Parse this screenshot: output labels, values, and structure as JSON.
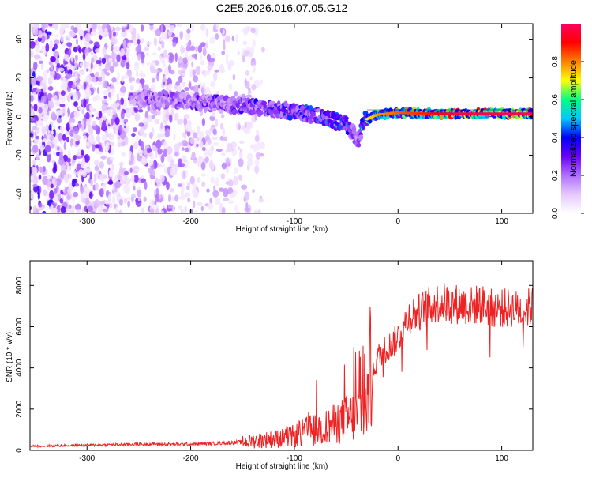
{
  "title": "C2E5.2026.016.07.05.G12",
  "chart_data": [
    {
      "type": "heatmap",
      "xlabel": "Height of straight line (km)",
      "ylabel": "Frequency (Hz)",
      "xlim": [
        -355,
        130
      ],
      "ylim": [
        -50,
        48
      ],
      "xticks": [
        -300,
        -200,
        -100,
        0,
        100
      ],
      "xtick_labels": [
        "-300",
        "-200",
        "-100",
        "0",
        "100"
      ],
      "yticks": [
        -40,
        -20,
        0,
        20,
        40
      ],
      "ytick_labels": [
        "-40",
        "-20",
        "0",
        "20",
        "40"
      ],
      "colorbar": {
        "label": "Normalized spectral amplitude",
        "range": [
          0,
          1
        ],
        "ticks": [
          0.0,
          0.2,
          0.4,
          0.6,
          0.8
        ],
        "tick_labels": [
          "0.0",
          "0.2",
          "0.4",
          "0.6",
          "0.8"
        ],
        "colors": [
          "#ffffff",
          "#e6c8ff",
          "#b070ff",
          "#6a00ff",
          "#0000ff",
          "#00c8ff",
          "#00ff80",
          "#ffff00",
          "#ff8000",
          "#ff0000",
          "#ff0060"
        ]
      },
      "ridge": {
        "x": [
          -255,
          -230,
          -200,
          -160,
          -120,
          -80,
          -50,
          -38,
          -33,
          -20,
          0,
          30,
          60,
          90,
          130
        ],
        "freq": [
          9,
          9,
          8,
          6,
          4,
          1,
          -4,
          -12,
          -2,
          1,
          2,
          1.5,
          1.5,
          1.5,
          1.5
        ],
        "amplitude": [
          0.25,
          0.3,
          0.3,
          0.35,
          0.4,
          0.45,
          0.45,
          0.35,
          0.6,
          0.7,
          0.75,
          0.8,
          0.9,
          0.9,
          0.9
        ]
      },
      "grid": false
    },
    {
      "type": "line",
      "xlabel": "Height of straight line (km)",
      "ylabel": "SNR (10 * v/v)",
      "xlim": [
        -355,
        130
      ],
      "ylim": [
        0,
        9200
      ],
      "xticks": [
        -300,
        -200,
        -100,
        0,
        100
      ],
      "xtick_labels": [
        "-300",
        "-200",
        "-100",
        "0",
        "100"
      ],
      "yticks": [
        0,
        2000,
        4000,
        6000,
        8000
      ],
      "ytick_labels": [
        "0",
        "2000",
        "4000",
        "6000",
        "8000"
      ],
      "color": "#ee2222",
      "series": [
        {
          "x": [
            -355,
            -300,
            -250,
            -200,
            -170,
            -150,
            -130,
            -110,
            -100,
            -90,
            -80,
            -70,
            -60,
            -50,
            -40,
            -35,
            -30,
            -25,
            -20,
            -15,
            -10,
            -5,
            0,
            5,
            10,
            15,
            20,
            30,
            40,
            50,
            60,
            70,
            80,
            90,
            100,
            110,
            120,
            130
          ],
          "values": [
            200,
            250,
            300,
            300,
            350,
            400,
            500,
            600,
            700,
            900,
            1000,
            1100,
            1300,
            1500,
            1700,
            2000,
            2300,
            3500,
            4500,
            4800,
            5000,
            5200,
            5500,
            5900,
            6500,
            6600,
            6700,
            7000,
            7200,
            7100,
            7100,
            7000,
            7100,
            6900,
            6900,
            6900,
            6800,
            7000
          ]
        }
      ],
      "grid": false
    }
  ]
}
